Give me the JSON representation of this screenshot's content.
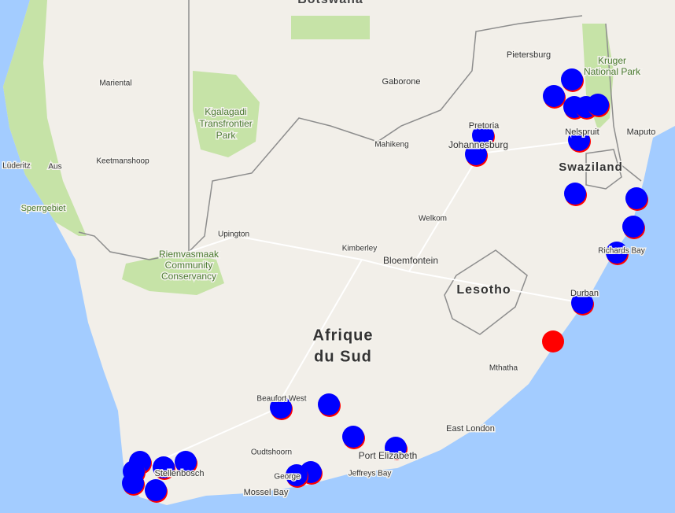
{
  "map": {
    "labels": [
      [
        "Botswana"
      ],
      [
        "Gaborone"
      ],
      [
        "Pietersburg"
      ],
      [
        "Kruger",
        "National Park"
      ],
      [
        "Mariental"
      ],
      [
        "Kgalagadi",
        "Transfrontier",
        "Park"
      ],
      [
        "Lüderitz"
      ],
      [
        "Aus"
      ],
      [
        "Keetmanshoop"
      ],
      [
        "Sperrgebiet"
      ],
      [
        "Mahikeng"
      ],
      [
        "Pretoria"
      ],
      [
        "Johannesburg"
      ],
      [
        "Nelspruit"
      ],
      [
        "Maputo"
      ],
      [
        "Swaziland"
      ],
      [
        "Welkom"
      ],
      [
        "Upington"
      ],
      [
        "Riemvasmaak",
        "Community",
        "Conservancy"
      ],
      [
        "Kimberley"
      ],
      [
        "Bloemfontein"
      ],
      [
        "Lesotho"
      ],
      [
        "Richards Bay"
      ],
      [
        "Durban"
      ],
      [
        "Afrique",
        "du Sud"
      ],
      [
        "Mthatha"
      ],
      [
        "Beaufort West"
      ],
      [
        "East London"
      ],
      [
        "Oudtshoorn"
      ],
      [
        "Port Elizabeth"
      ],
      [
        "Jeffreys Bay"
      ],
      [
        "George"
      ],
      [
        "Mossel Bay"
      ],
      [
        "Stellenbosch"
      ]
    ]
  }
}
